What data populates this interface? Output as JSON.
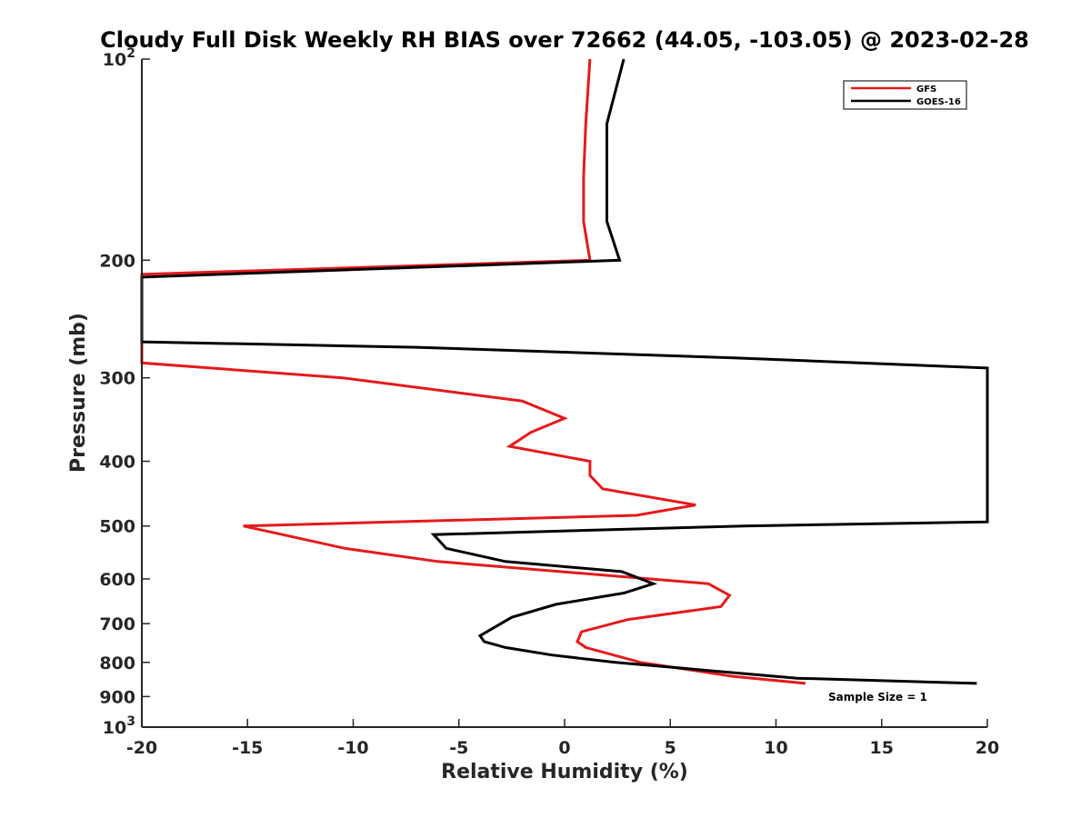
{
  "chart_data": {
    "type": "line",
    "title": "Cloudy Full Disk Weekly RH BIAS over 72662 (44.05, -103.05) @ 2023-02-28",
    "xlabel": "Relative Humidity (%)",
    "ylabel": "Pressure (mb)",
    "xlim": [
      -20,
      20
    ],
    "ylim": [
      100,
      1000
    ],
    "y_scale": "log",
    "y_reversed": true,
    "grid": false,
    "legend_position": "top-right",
    "x_ticks": [
      -20,
      -15,
      -10,
      -5,
      0,
      5,
      10,
      15,
      20
    ],
    "x_tick_labels": [
      "-20",
      "-15",
      "-10",
      "-5",
      "0",
      "5",
      "10",
      "15",
      "20"
    ],
    "y_ticks": [
      100,
      200,
      300,
      400,
      500,
      600,
      700,
      800,
      900,
      1000
    ],
    "y_tick_labels": [
      {
        "base": "10",
        "exp": "2"
      },
      {
        "base": "200",
        "exp": ""
      },
      {
        "base": "300",
        "exp": ""
      },
      {
        "base": "400",
        "exp": ""
      },
      {
        "base": "500",
        "exp": ""
      },
      {
        "base": "600",
        "exp": ""
      },
      {
        "base": "700",
        "exp": ""
      },
      {
        "base": "800",
        "exp": ""
      },
      {
        "base": "900",
        "exp": ""
      },
      {
        "base": "10",
        "exp": "3"
      }
    ],
    "series": [
      {
        "name": "GFS",
        "color": "#e41a1c",
        "points": [
          [
            1.2,
            100
          ],
          [
            1.0,
            125
          ],
          [
            0.9,
            150
          ],
          [
            0.9,
            175
          ],
          [
            1.2,
            200
          ],
          [
            -20.0,
            210
          ],
          [
            -20.0,
            285
          ],
          [
            -10.5,
            300
          ],
          [
            -2.0,
            325
          ],
          [
            0.0,
            345
          ],
          [
            -1.6,
            362
          ],
          [
            -2.6,
            380
          ],
          [
            1.2,
            400
          ],
          [
            1.2,
            420
          ],
          [
            1.8,
            440
          ],
          [
            6.2,
            465
          ],
          [
            3.4,
            482
          ],
          [
            -15.2,
            500
          ],
          [
            -10.4,
            540
          ],
          [
            -6.0,
            565
          ],
          [
            6.8,
            610
          ],
          [
            7.8,
            635
          ],
          [
            7.4,
            660
          ],
          [
            3.0,
            690
          ],
          [
            0.8,
            720
          ],
          [
            0.6,
            745
          ],
          [
            1.0,
            760
          ],
          [
            3.6,
            800
          ],
          [
            8.0,
            840
          ],
          [
            11.4,
            860
          ]
        ]
      },
      {
        "name": "GOES-16",
        "color": "#000000",
        "points": [
          [
            2.8,
            100
          ],
          [
            2.0,
            125
          ],
          [
            2.0,
            150
          ],
          [
            2.0,
            175
          ],
          [
            2.6,
            200
          ],
          [
            -20.0,
            212
          ],
          [
            -20.0,
            265
          ],
          [
            -7.0,
            270
          ],
          [
            8.0,
            280
          ],
          [
            20.0,
            290
          ],
          [
            20.0,
            493
          ],
          [
            8.5,
            500
          ],
          [
            -6.2,
            515
          ],
          [
            -5.6,
            540
          ],
          [
            -2.8,
            565
          ],
          [
            2.7,
            585
          ],
          [
            4.2,
            610
          ],
          [
            2.8,
            630
          ],
          [
            -0.4,
            655
          ],
          [
            -2.5,
            685
          ],
          [
            -4.0,
            730
          ],
          [
            -3.8,
            745
          ],
          [
            -2.8,
            760
          ],
          [
            -0.6,
            780
          ],
          [
            2.4,
            800
          ],
          [
            11.0,
            845
          ],
          [
            19.5,
            860
          ]
        ]
      }
    ],
    "annotation": "Sample Size = 1"
  }
}
